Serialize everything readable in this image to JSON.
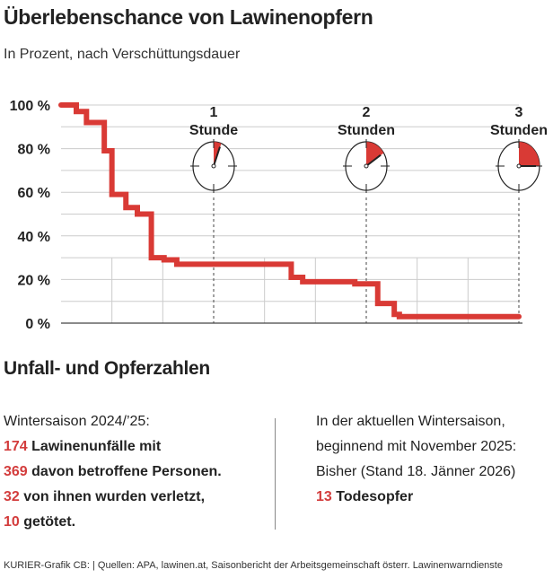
{
  "title": "Überlebenschance von Lawinenopfern",
  "subtitle": "In Prozent, nach Verschüttungsdauer",
  "chart_data": {
    "type": "line",
    "step": true,
    "xlabel": "",
    "ylabel": "",
    "x_unit": "minutes",
    "xlim": [
      0,
      180
    ],
    "ylim": [
      0,
      100
    ],
    "y_ticks": [
      0,
      20,
      40,
      60,
      80,
      100
    ],
    "y_tick_labels": [
      "0 %",
      "20 %",
      "40 %",
      "60 %",
      "80 %",
      "100 %"
    ],
    "grid": "on",
    "line_color": "#d93a35",
    "x": [
      0,
      6,
      10,
      17,
      20,
      25.5,
      30,
      35.5,
      40.5,
      45.5,
      90.5,
      95,
      115.5,
      124.5,
      131,
      133,
      180
    ],
    "y": [
      100,
      97,
      92,
      79,
      59,
      53,
      50,
      30,
      29,
      27,
      21,
      19,
      18,
      9,
      4,
      3,
      3
    ],
    "markers": [
      {
        "minutes": 60,
        "number": "1",
        "label": "Stunde",
        "fill_fraction": 0.06
      },
      {
        "minutes": 120,
        "number": "2",
        "label": "Stunden",
        "fill_fraction": 0.16
      },
      {
        "minutes": 180,
        "number": "3",
        "label": "Stunden",
        "fill_fraction": 0.25
      }
    ]
  },
  "section": {
    "title": "Unfall- und Opferzahlen",
    "left": {
      "heading": "Wintersaison 2024/’25:",
      "lines": [
        {
          "num": "174",
          "text": " Lawinenunfälle mit"
        },
        {
          "num": "369",
          "text": " davon betroffene Personen."
        },
        {
          "num": "32",
          "text": " von ihnen wurden verletzt,"
        },
        {
          "num": "10",
          "text": " getötet."
        }
      ]
    },
    "right": {
      "lines": [
        "In der aktuellen Wintersaison,",
        "beginnend mit November 2025:",
        "Bisher (Stand 18. Jänner 2026)"
      ],
      "highlight": {
        "num": "13",
        "text": " Todesopfer"
      }
    }
  },
  "footer": "KURIER-Grafik CB:  | Quellen: APA, lawinen.at, Saisonbericht der Arbeitsgemeinschaft österr. Lawinenwarndienste"
}
